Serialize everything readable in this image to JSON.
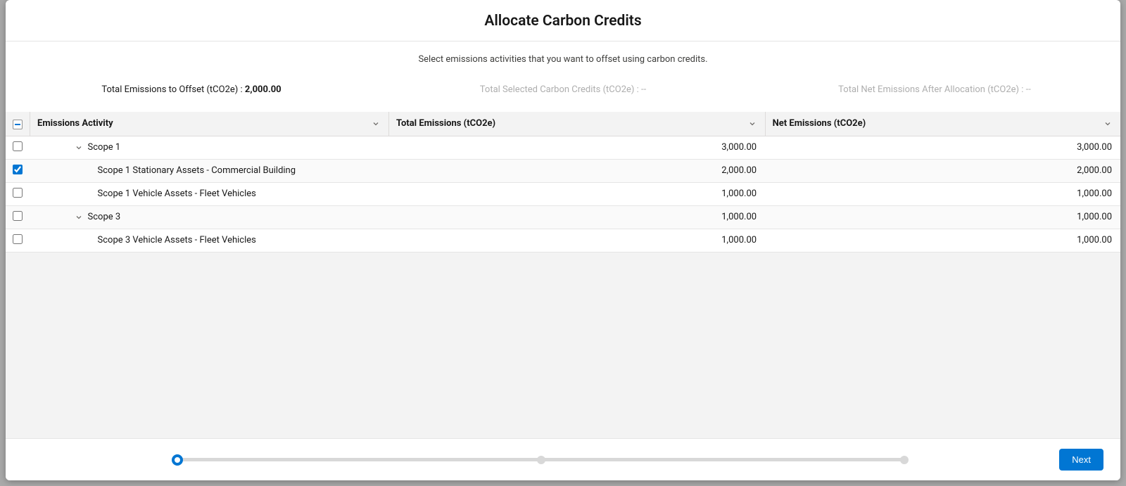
{
  "modal": {
    "title": "Allocate Carbon Credits",
    "subtitle": "Select emissions activities that you want to offset using carbon credits."
  },
  "metrics": {
    "offset": {
      "label": "Total Emissions to Offset (tCO2e) : ",
      "value": "2,000.00"
    },
    "selected": {
      "label": "Total Selected Carbon Credits (tCO2e) : ",
      "value": "--"
    },
    "net": {
      "label": "Total Net Emissions After Allocation (tCO2e) : ",
      "value": "--"
    }
  },
  "columns": {
    "activity": "Emissions Activity",
    "total": "Total Emissions (tCO2e)",
    "net": "Net Emissions (tCO2e)"
  },
  "rows": [
    {
      "type": "group",
      "checked": false,
      "expanded": true,
      "label": "Scope 1",
      "total": "3,000.00",
      "net": "3,000.00"
    },
    {
      "type": "leaf",
      "checked": true,
      "label": "Scope 1 Stationary Assets - Commercial Building",
      "total": "2,000.00",
      "net": "2,000.00"
    },
    {
      "type": "leaf",
      "checked": false,
      "label": "Scope 1 Vehicle Assets - Fleet Vehicles",
      "total": "1,000.00",
      "net": "1,000.00"
    },
    {
      "type": "group",
      "checked": false,
      "expanded": true,
      "label": "Scope 3",
      "total": "1,000.00",
      "net": "1,000.00"
    },
    {
      "type": "leaf",
      "checked": false,
      "label": "Scope 3 Vehicle Assets - Fleet Vehicles",
      "total": "1,000.00",
      "net": "1,000.00"
    }
  ],
  "footer": {
    "next": "Next",
    "progress": {
      "steps": 3,
      "current": 0
    }
  },
  "colors": {
    "accent": "#0176d3",
    "border": "#e5e5e5",
    "text": "#181818",
    "muted": "#aeaeae",
    "row_alt": "#fafafa",
    "table_bg": "#f3f3f3"
  }
}
